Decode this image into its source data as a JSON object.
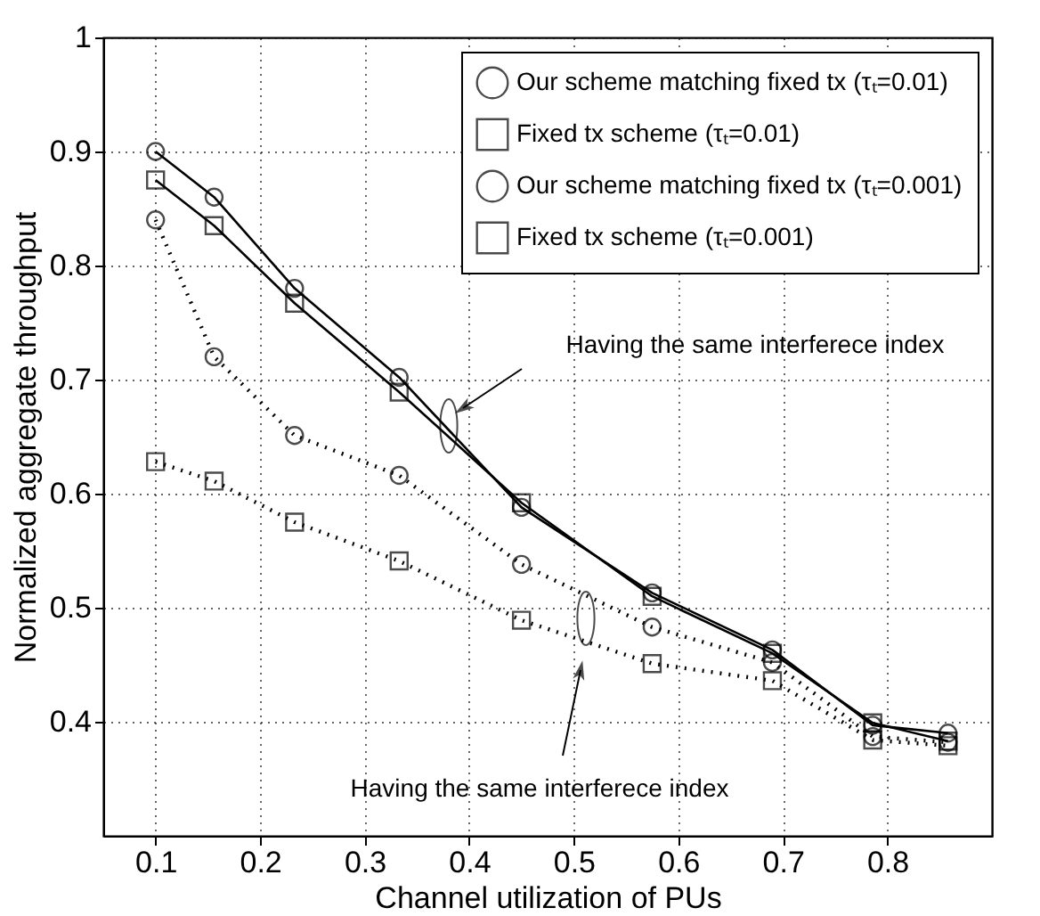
{
  "chart_data": {
    "type": "line",
    "xlabel": "Channel utilization of PUs",
    "ylabel": "Normalized aggregate throughput",
    "x": [
      0.1,
      0.156,
      0.233,
      0.333,
      0.45,
      0.575,
      0.69,
      0.786,
      0.858
    ],
    "series": [
      {
        "name": "Our scheme matching fixed tx (τₜ=0.01)",
        "color": "#000000",
        "marker": "circle",
        "line_style": "solid",
        "values": [
          0.9,
          0.86,
          0.78,
          0.702,
          0.588,
          0.513,
          0.463,
          0.397,
          0.39
        ]
      },
      {
        "name": "Fixed tx scheme (τₜ=0.01)",
        "color": "#000000",
        "marker": "square",
        "line_style": "solid",
        "values": [
          0.875,
          0.835,
          0.767,
          0.689,
          0.592,
          0.51,
          0.46,
          0.399,
          0.383
        ]
      },
      {
        "name": "Our scheme matching fixed tx (τₜ=0.001)",
        "color": "#000000",
        "marker": "circle",
        "line_style": "dotted",
        "values": [
          0.84,
          0.72,
          0.651,
          0.616,
          0.538,
          0.483,
          0.452,
          0.387,
          0.382
        ]
      },
      {
        "name": "Fixed tx scheme (τₜ=0.001)",
        "color": "#000000",
        "marker": "square",
        "line_style": "dotted",
        "values": [
          0.628,
          0.611,
          0.575,
          0.541,
          0.489,
          0.451,
          0.436,
          0.384,
          0.379
        ]
      }
    ],
    "annotations": [
      "Having the same interferece index",
      "Having the same interferece index"
    ],
    "xlim": [
      0.05,
      0.9
    ],
    "ylim": [
      0.3,
      1
    ],
    "xticks": [
      0.1,
      0.2,
      0.3,
      0.4,
      0.5,
      0.6,
      0.7,
      0.8
    ],
    "yticks": [
      0.4,
      0.5,
      0.6,
      0.7,
      0.8,
      0.9,
      1
    ],
    "grid": true,
    "legend": "top right"
  }
}
